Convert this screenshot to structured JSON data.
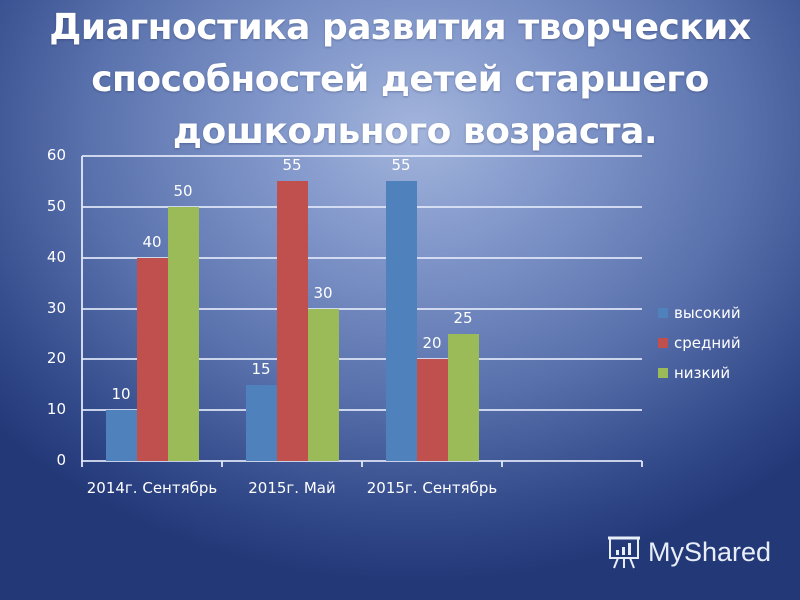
{
  "slide": {
    "title_lines": [
      "Диагностика развития творческих",
      "способностей детей старшего",
      "дошкольного возраста."
    ]
  },
  "chart_data": {
    "type": "bar",
    "title": "Диагностика развития творческих способностей детей старшего дошкольного возраста.",
    "categories": [
      "2014г. Сентябрь",
      "2015г. Май",
      "2015г. Сентябрь",
      ""
    ],
    "series": [
      {
        "name": "высокий",
        "color": "#4f81bd",
        "values": [
          10,
          15,
          55,
          null
        ]
      },
      {
        "name": "средний",
        "color": "#c0504d",
        "values": [
          40,
          55,
          20,
          null
        ]
      },
      {
        "name": "низкий",
        "color": "#9bbb59",
        "values": [
          50,
          30,
          25,
          null
        ]
      }
    ],
    "data_labels": true,
    "xlabel": "",
    "ylabel": "",
    "ylim": [
      0,
      60
    ],
    "yticks": [
      0,
      10,
      20,
      30,
      40,
      50,
      60
    ],
    "grid": true,
    "legend_position": "right"
  },
  "legend": {
    "items": [
      "высокий",
      "средний",
      "низкий"
    ]
  },
  "watermark": {
    "text": "MyShared",
    "icon": "presentation-board-icon"
  }
}
